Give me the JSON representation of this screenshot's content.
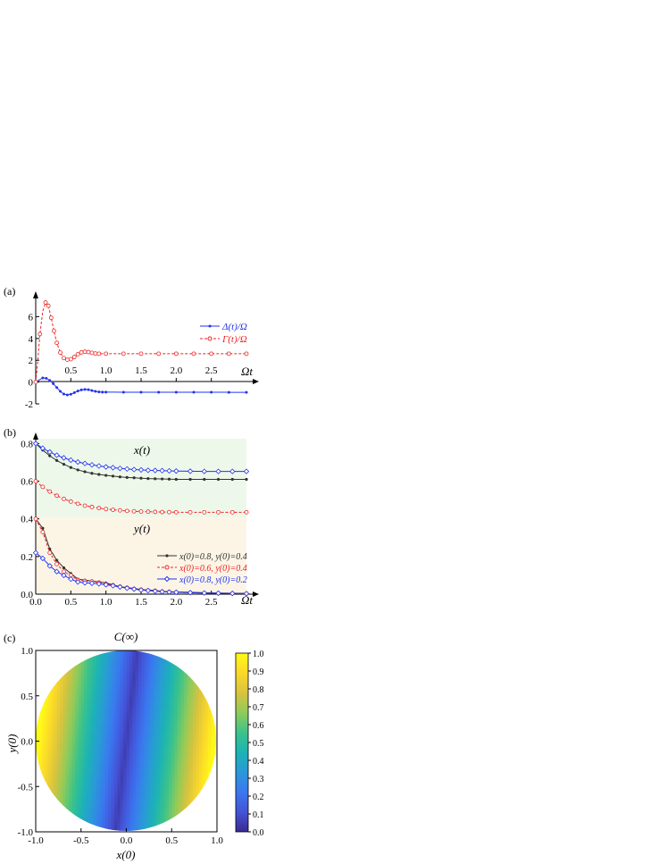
{
  "chart_data": [
    {
      "panel": "(a)",
      "type": "line",
      "x_axis_label": "Ωt",
      "xlim": [
        0,
        3.0
      ],
      "ylim": [
        -2,
        8
      ],
      "x_ticks": [
        "0.5",
        "1.0",
        "1.5",
        "2.0",
        "2.5"
      ],
      "y_ticks": [
        "-2",
        "0",
        "2",
        "4",
        "6"
      ],
      "series": [
        {
          "name": "Δ(t)/Ω",
          "color": "#2233ee",
          "dash": "solid",
          "marker": "dot",
          "x": [
            0,
            0.05,
            0.1,
            0.15,
            0.2,
            0.25,
            0.3,
            0.35,
            0.4,
            0.45,
            0.5,
            0.55,
            0.6,
            0.65,
            0.7,
            0.75,
            0.8,
            0.85,
            0.9,
            0.95,
            1.0,
            1.25,
            1.5,
            1.75,
            2.0,
            2.25,
            2.5,
            2.75,
            3.0
          ],
          "y": [
            0,
            0.2,
            0.38,
            0.35,
            0.15,
            -0.15,
            -0.5,
            -0.85,
            -1.1,
            -1.18,
            -1.12,
            -0.98,
            -0.82,
            -0.72,
            -0.68,
            -0.7,
            -0.78,
            -0.85,
            -0.9,
            -0.92,
            -0.92,
            -0.93,
            -0.93,
            -0.93,
            -0.93,
            -0.93,
            -0.93,
            -0.94,
            -0.94
          ]
        },
        {
          "name": "Γ(t)/Ω",
          "color": "#ee2222",
          "dash": "dashed",
          "marker": "circle",
          "x": [
            0,
            0.03,
            0.06,
            0.1,
            0.14,
            0.18,
            0.22,
            0.26,
            0.3,
            0.35,
            0.4,
            0.45,
            0.5,
            0.55,
            0.6,
            0.65,
            0.7,
            0.75,
            0.8,
            0.85,
            0.9,
            1.0,
            1.25,
            1.5,
            1.75,
            2.0,
            2.25,
            2.5,
            2.75,
            3.0
          ],
          "y": [
            0,
            2.0,
            4.4,
            6.5,
            7.3,
            7.0,
            5.9,
            4.7,
            3.6,
            2.7,
            2.2,
            2.05,
            2.1,
            2.3,
            2.55,
            2.72,
            2.78,
            2.75,
            2.68,
            2.62,
            2.6,
            2.6,
            2.6,
            2.6,
            2.6,
            2.6,
            2.6,
            2.6,
            2.6,
            2.6
          ]
        }
      ]
    },
    {
      "panel": "(b)",
      "type": "line",
      "x_axis_label": "Ωt",
      "xlim": [
        0,
        3.0
      ],
      "ylim": [
        0,
        0.84
      ],
      "x_ticks": [
        "0.0",
        "0.5",
        "1.0",
        "1.5",
        "2.0",
        "2.5"
      ],
      "y_ticks": [
        "0.0",
        "0.2",
        "0.4",
        "0.6",
        "0.8"
      ],
      "region_labels": [
        "x(t)",
        "y(t)"
      ],
      "series": [
        {
          "name": "x(0)=0.8, y(0)=0.4",
          "color": "#333333",
          "marker": "dot",
          "dash": "solid",
          "x_curve": [
            0,
            0.1,
            0.2,
            0.3,
            0.4,
            0.5,
            0.6,
            0.7,
            0.8,
            0.9,
            1.0,
            1.1,
            1.2,
            1.3,
            1.4,
            1.5,
            1.6,
            1.7,
            1.8,
            1.9,
            2.0,
            2.2,
            2.4,
            2.6,
            2.8,
            3.0
          ],
          "x_values": [
            0.8,
            0.765,
            0.735,
            0.71,
            0.69,
            0.673,
            0.66,
            0.65,
            0.642,
            0.636,
            0.631,
            0.627,
            0.623,
            0.62,
            0.618,
            0.616,
            0.614,
            0.613,
            0.612,
            0.611,
            0.61,
            0.61,
            0.61,
            0.61,
            0.61,
            0.61
          ],
          "y_values": [
            0.4,
            0.35,
            0.24,
            0.18,
            0.14,
            0.11,
            0.08,
            0.075,
            0.07,
            0.065,
            0.06,
            0.05,
            0.04,
            0.035,
            0.03,
            0.025,
            0.022,
            0.02,
            0.015,
            0.013,
            0.012,
            0.01,
            0.008,
            0.006,
            0.005,
            0.004
          ]
        },
        {
          "name": "x(0)=0.6, y(0)=0.4",
          "color": "#ee2222",
          "marker": "circle",
          "dash": "dashed",
          "x_values": [
            0.6,
            0.57,
            0.545,
            0.523,
            0.506,
            0.492,
            0.48,
            0.47,
            0.463,
            0.457,
            0.452,
            0.448,
            0.445,
            0.442,
            0.44,
            0.439,
            0.438,
            0.437,
            0.436,
            0.436,
            0.435,
            0.435,
            0.435,
            0.435,
            0.435,
            0.435
          ],
          "y_values": [
            0.4,
            0.33,
            0.22,
            0.16,
            0.12,
            0.1,
            0.075,
            0.07,
            0.068,
            0.062,
            0.055,
            0.048,
            0.04,
            0.034,
            0.028,
            0.024,
            0.02,
            0.018,
            0.014,
            0.012,
            0.01,
            0.008,
            0.006,
            0.005,
            0.004,
            0.003
          ]
        },
        {
          "name": "x(0)=0.8, y(0)=0.2",
          "color": "#2233ee",
          "marker": "diamond",
          "dash": "solid",
          "x_values": [
            0.8,
            0.775,
            0.755,
            0.738,
            0.724,
            0.712,
            0.702,
            0.694,
            0.687,
            0.681,
            0.676,
            0.672,
            0.668,
            0.665,
            0.662,
            0.66,
            0.658,
            0.657,
            0.656,
            0.655,
            0.654,
            0.653,
            0.652,
            0.652,
            0.652,
            0.652
          ],
          "y_values": [
            0.22,
            0.19,
            0.15,
            0.12,
            0.1,
            0.08,
            0.065,
            0.06,
            0.058,
            0.055,
            0.05,
            0.045,
            0.038,
            0.032,
            0.027,
            0.022,
            0.019,
            0.016,
            0.013,
            0.011,
            0.01,
            0.008,
            0.006,
            0.005,
            0.004,
            0.003
          ]
        }
      ]
    },
    {
      "panel": "(c)",
      "type": "heatmap",
      "title": "C(∞)",
      "xlabel": "x(0)",
      "ylabel": "y(0)",
      "xlim": [
        -1.0,
        1.0
      ],
      "ylim": [
        -1.0,
        1.0
      ],
      "x_ticks": [
        "-1.0",
        "-0.5",
        "0.0",
        "0.5",
        "1.0"
      ],
      "y_ticks": [
        "-1.0",
        "-0.5",
        "0.0",
        "0.5",
        "1.0"
      ],
      "domain": "unit disk",
      "colorbar_range": [
        0.0,
        1.0
      ],
      "colorbar_ticks": [
        "0.0",
        "0.1",
        "0.2",
        "0.3",
        "0.4",
        "0.5",
        "0.6",
        "0.7",
        "0.8",
        "0.9",
        "1.0"
      ],
      "colormap": [
        "#3b2c8f",
        "#4453d8",
        "#3a78f0",
        "#2a99d8",
        "#1cb3b5",
        "#3cc38a",
        "#8fcb5a",
        "#d8c33e",
        "#fbd82a",
        "#fffb16"
      ]
    }
  ]
}
